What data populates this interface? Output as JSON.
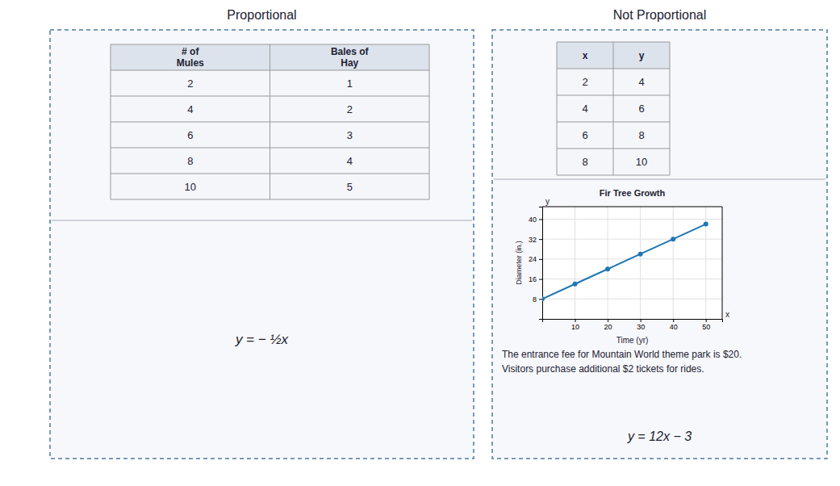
{
  "chart_data": [
    {
      "type": "table",
      "title": "Proportional",
      "columns": [
        "# of\nMules",
        "Bales of\nHay"
      ],
      "rows": [
        [
          2,
          1
        ],
        [
          4,
          2
        ],
        [
          6,
          3
        ],
        [
          8,
          4
        ],
        [
          10,
          5
        ]
      ],
      "annotations": [
        "y = − ½x"
      ]
    },
    {
      "type": "table",
      "title": "Not Proportional",
      "columns": [
        "x",
        "y"
      ],
      "rows": [
        [
          2,
          4
        ],
        [
          4,
          6
        ],
        [
          6,
          8
        ],
        [
          8,
          10
        ]
      ],
      "annotations": [
        "The entrance fee for Mountain World theme park is $20.",
        "Visitors purchase additional $2 tickets for rides.",
        "y = 12x − 3"
      ]
    },
    {
      "type": "line",
      "title": "Fir Tree Growth",
      "x": [
        0,
        10,
        20,
        30,
        40,
        50
      ],
      "values": [
        8,
        14,
        20,
        26,
        32,
        38
      ],
      "xlabel": "Time (yr)",
      "ylabel": "Diameter (in.)",
      "xlim": [
        0,
        55
      ],
      "ylim": [
        0,
        45
      ],
      "xticks": [
        10,
        20,
        30,
        40,
        50
      ],
      "yticks": [
        8,
        16,
        24,
        32,
        40
      ],
      "grid": true,
      "marker": "circle",
      "annotations": [
        "y",
        "x"
      ]
    }
  ]
}
